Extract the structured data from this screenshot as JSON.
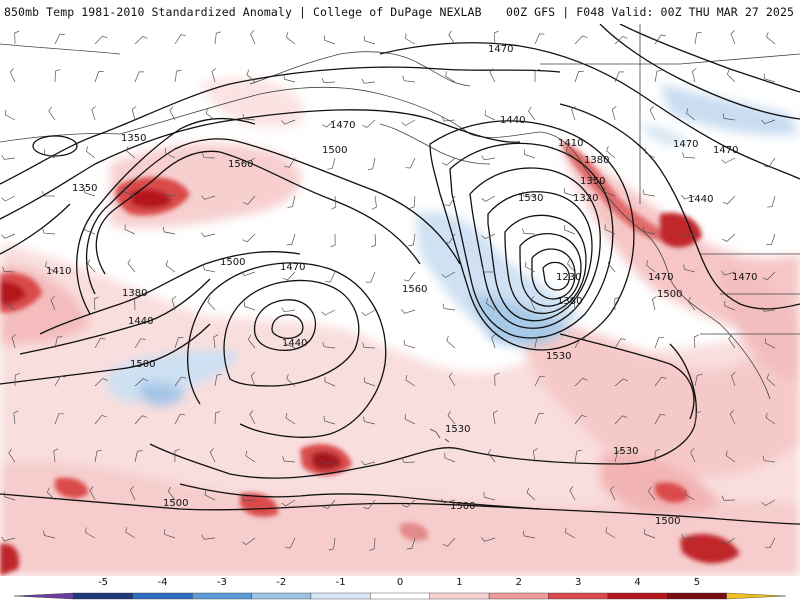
{
  "header": {
    "title": "850mb Temp 1981-2010 Standardized Anomaly | College of DuPage NEXLAB",
    "valid": "00Z GFS | F048 Valid: 00Z THU MAR 27 2025"
  },
  "contour_labels": [
    "1470",
    "1470",
    "1470",
    "1470",
    "1470",
    "1470",
    "1470",
    "1440",
    "1440",
    "1440",
    "1440",
    "1410",
    "1410",
    "1380",
    "1380",
    "1380",
    "1350",
    "1350",
    "1350",
    "1320",
    "1230",
    "1500",
    "1500",
    "1500",
    "1500",
    "1500",
    "1500",
    "1500",
    "1530",
    "1530",
    "1530",
    "1530",
    "1560",
    "1560"
  ],
  "colorbar": {
    "ticks": [
      "-5",
      "-4",
      "-3",
      "-2",
      "-1",
      "0",
      "1",
      "2",
      "3",
      "4",
      "5"
    ],
    "colors": [
      "#6b3fa0",
      "#1f3a7a",
      "#2f6fbf",
      "#5c9bd6",
      "#9cc3e6",
      "#d6e5f3",
      "#ffffff",
      "#f7d3d3",
      "#ec9a9a",
      "#d94b4b",
      "#b5161c",
      "#7a0d12",
      "#f0c020"
    ]
  }
}
